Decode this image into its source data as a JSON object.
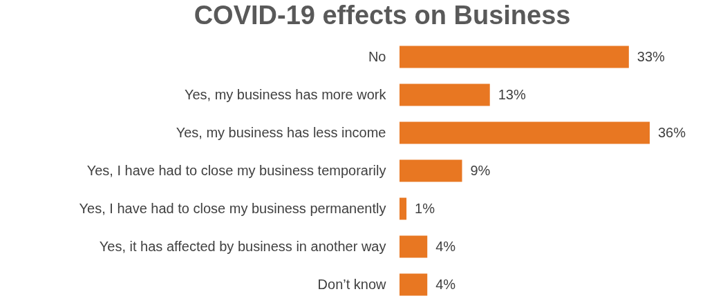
{
  "chart_data": {
    "type": "bar",
    "orientation": "horizontal",
    "title": "COVID-19 effects on Business",
    "categories": [
      "No",
      "Yes, my business has more work",
      "Yes, my business has less income",
      "Yes, I have had to close my business temporarily",
      "Yes, I have had to close my business permanently",
      "Yes, it has affected by business in another way",
      "Don’t know"
    ],
    "values": [
      33,
      13,
      36,
      9,
      1,
      4,
      4
    ],
    "value_labels": [
      "33%",
      "13%",
      "36%",
      "9%",
      "1%",
      "4%",
      "4%"
    ],
    "color": "#e87722"
  }
}
